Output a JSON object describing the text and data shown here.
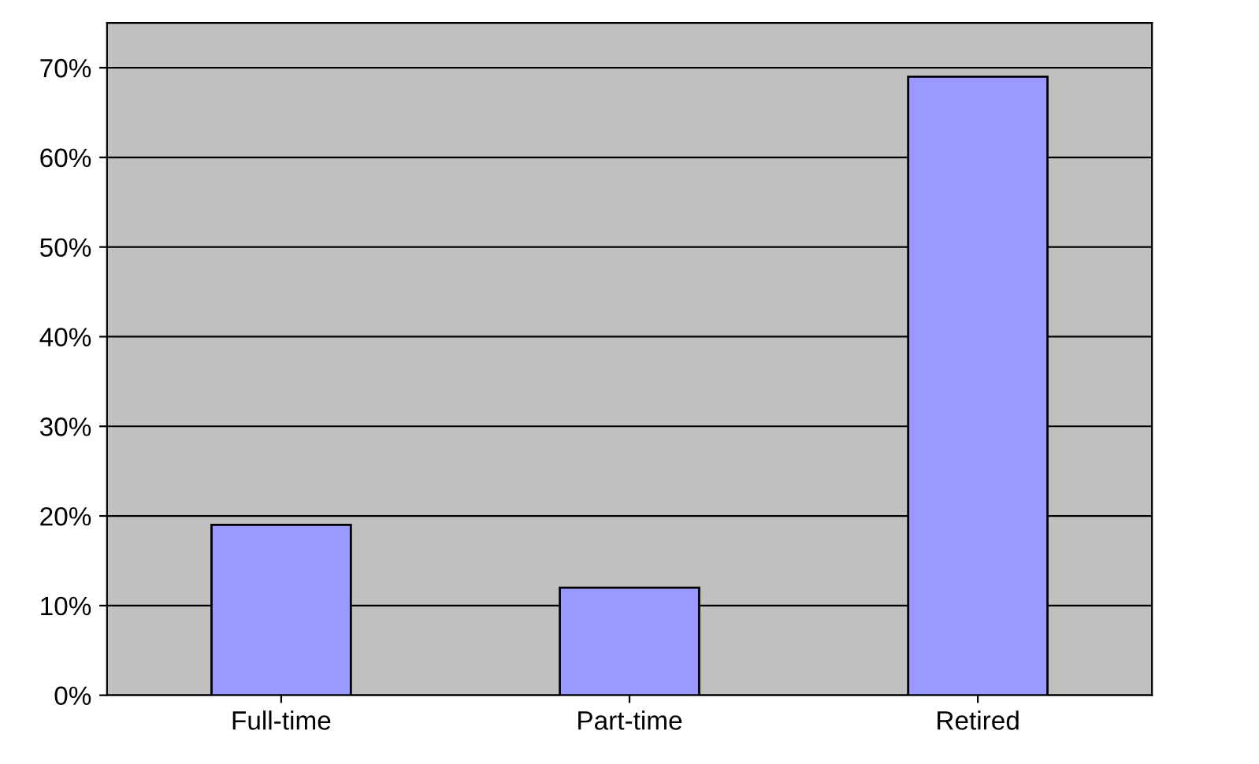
{
  "chart_data": {
    "type": "bar",
    "categories": [
      "Full-time",
      "Part-time",
      "Retired"
    ],
    "values": [
      19,
      12,
      69
    ],
    "color": "#9999ff",
    "ylim": [
      0,
      75
    ],
    "yticks": [
      {
        "value": 0,
        "label": "0%"
      },
      {
        "value": 10,
        "label": "10%"
      },
      {
        "value": 20,
        "label": "20%"
      },
      {
        "value": 30,
        "label": "30%"
      },
      {
        "value": 40,
        "label": "40%"
      },
      {
        "value": 50,
        "label": "50%"
      },
      {
        "value": 60,
        "label": "60%"
      },
      {
        "value": 70,
        "label": "70%"
      }
    ],
    "grid": "y",
    "legend": false
  }
}
